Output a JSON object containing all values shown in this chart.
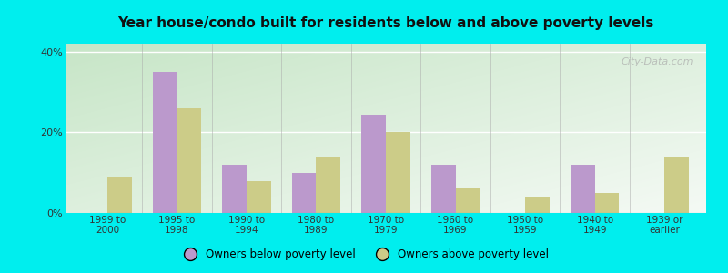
{
  "title": "Year house/condo built for residents below and above poverty levels",
  "categories": [
    "1999 to\n2000",
    "1995 to\n1998",
    "1990 to\n1994",
    "1980 to\n1989",
    "1970 to\n1979",
    "1960 to\n1969",
    "1950 to\n1959",
    "1940 to\n1949",
    "1939 or\nearlier"
  ],
  "below_poverty": [
    0.0,
    35.0,
    12.0,
    10.0,
    24.5,
    12.0,
    0.0,
    12.0,
    0.0
  ],
  "above_poverty": [
    9.0,
    26.0,
    8.0,
    14.0,
    20.0,
    6.0,
    4.0,
    5.0,
    14.0
  ],
  "below_color": "#bb99cc",
  "above_color": "#cccc88",
  "ylim": [
    0,
    42
  ],
  "yticks": [
    0,
    20,
    40
  ],
  "ytick_labels": [
    "0%",
    "20%",
    "40%"
  ],
  "legend_below": "Owners below poverty level",
  "legend_above": "Owners above poverty level",
  "bg_outer": "#00eeee",
  "bar_width": 0.35,
  "watermark": "City-Data.com"
}
